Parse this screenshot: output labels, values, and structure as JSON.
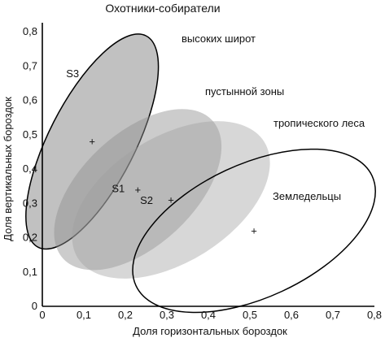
{
  "chart_data": {
    "type": "scatter",
    "title": "Охотники-собиратели",
    "xlabel": "Доля горизонтальных бороздок",
    "ylabel": "Доля вертикальных бороздок",
    "xlim": [
      0,
      0.8
    ],
    "ylim": [
      0,
      0.8
    ],
    "xticks": [
      "0",
      "0,1",
      "0,2",
      "0,3",
      "0,4",
      "0,5",
      "0,6",
      "0,7",
      "0,8"
    ],
    "yticks": [
      "0",
      "0,1",
      "0,2",
      "0,3",
      "0,4",
      "0,5",
      "0,6",
      "0,7",
      "0,8"
    ],
    "grid": false,
    "regions": [
      {
        "name": "высоких широт",
        "center": [
          0.12,
          0.48
        ],
        "fill": "#a6a6a6",
        "opacity": 0.7,
        "stroke": "#000000"
      },
      {
        "name": "пустынной зоны",
        "center": [
          0.23,
          0.34
        ],
        "fill": "#8f8f8f",
        "opacity": 0.45,
        "stroke": "none"
      },
      {
        "name": "тропического леса",
        "center": [
          0.31,
          0.31
        ],
        "fill": "#a0a0a0",
        "opacity": 0.42,
        "stroke": "none"
      },
      {
        "name": "Земледельцы",
        "center": [
          0.51,
          0.22
        ],
        "fill": "none",
        "opacity": 1,
        "stroke": "#000000"
      }
    ],
    "points": [
      {
        "label": "S3",
        "x": 0.12,
        "y": 0.48
      },
      {
        "label": "S1",
        "x": 0.23,
        "y": 0.34
      },
      {
        "label": "S2",
        "x": 0.31,
        "y": 0.31
      },
      {
        "label": "",
        "x": 0.51,
        "y": 0.22
      }
    ]
  }
}
